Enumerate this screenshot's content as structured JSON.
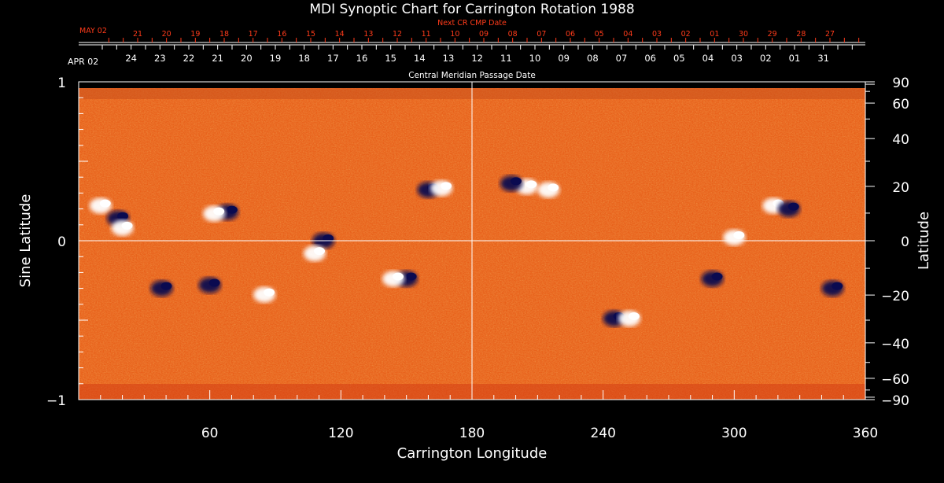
{
  "chart_data": {
    "type": "heatmap",
    "title": "MDI Synoptic Chart for Carrington Rotation 1988",
    "xlabel": "Carrington Longitude",
    "ylabel_left": "Sine Latitude",
    "ylabel_right": "Latitude",
    "xlim": [
      0,
      360
    ],
    "ylim": [
      -1,
      1
    ],
    "x_ticks": [
      60,
      120,
      180,
      240,
      300,
      360
    ],
    "y_ticks_left": [
      {
        "value": 1,
        "label": "1"
      },
      {
        "value": 0,
        "label": "0"
      },
      {
        "value": -1,
        "label": "−1"
      }
    ],
    "y_ticks_right_deg": [
      90,
      60,
      40,
      20,
      0,
      -20,
      -40,
      -60,
      -90
    ],
    "y_ticks_right_labels": [
      "90",
      "60",
      "40",
      "20",
      "0",
      "−20",
      "−40",
      "−60",
      "−90"
    ],
    "crosshair": {
      "longitude": 180,
      "sine_latitude": 0
    },
    "cmp_axis": {
      "title": "Central Meridian Passage Date",
      "start_label": "APR 02",
      "dates": [
        "24",
        "23",
        "22",
        "21",
        "20",
        "19",
        "18",
        "17",
        "16",
        "15",
        "14",
        "13",
        "12",
        "11",
        "10",
        "09",
        "08",
        "07",
        "06",
        "05",
        "04",
        "03",
        "02",
        "01",
        "31"
      ],
      "first_longitude": 24,
      "step_longitude": 13.2
    },
    "next_cmp_axis": {
      "title": "Next CR CMP Date",
      "start_label": "MAY 02",
      "dates": [
        "21",
        "20",
        "19",
        "18",
        "17",
        "16",
        "15",
        "14",
        "13",
        "12",
        "11",
        "10",
        "09",
        "08",
        "07",
        "06",
        "05",
        "04",
        "03",
        "02",
        "01",
        "30",
        "29",
        "28",
        "27"
      ],
      "first_longitude": 27,
      "step_longitude": 13.2
    },
    "colors": {
      "background_field": "#e8601a",
      "positive_polarity": "#ffffff",
      "negative_polarity": "#0a0a50",
      "text": "#ffffff",
      "next_cr_text": "#ff3b1a"
    },
    "active_regions": [
      {
        "lon": 10,
        "sinlat": 0.22,
        "polarity": "positive"
      },
      {
        "lon": 18,
        "sinlat": 0.14,
        "polarity": "negative"
      },
      {
        "lon": 20,
        "sinlat": 0.08,
        "polarity": "positive"
      },
      {
        "lon": 68,
        "sinlat": 0.18,
        "polarity": "negative"
      },
      {
        "lon": 62,
        "sinlat": 0.17,
        "polarity": "positive"
      },
      {
        "lon": 112,
        "sinlat": 0.0,
        "polarity": "negative"
      },
      {
        "lon": 108,
        "sinlat": -0.08,
        "polarity": "positive"
      },
      {
        "lon": 150,
        "sinlat": -0.24,
        "polarity": "negative"
      },
      {
        "lon": 144,
        "sinlat": -0.24,
        "polarity": "positive"
      },
      {
        "lon": 160,
        "sinlat": 0.32,
        "polarity": "negative"
      },
      {
        "lon": 166,
        "sinlat": 0.33,
        "polarity": "positive"
      },
      {
        "lon": 205,
        "sinlat": 0.34,
        "polarity": "positive"
      },
      {
        "lon": 215,
        "sinlat": 0.32,
        "polarity": "positive"
      },
      {
        "lon": 198,
        "sinlat": 0.36,
        "polarity": "negative"
      },
      {
        "lon": 245,
        "sinlat": -0.49,
        "polarity": "negative"
      },
      {
        "lon": 252,
        "sinlat": -0.49,
        "polarity": "positive"
      },
      {
        "lon": 300,
        "sinlat": 0.02,
        "polarity": "positive"
      },
      {
        "lon": 318,
        "sinlat": 0.22,
        "polarity": "positive"
      },
      {
        "lon": 325,
        "sinlat": 0.2,
        "polarity": "negative"
      },
      {
        "lon": 290,
        "sinlat": -0.24,
        "polarity": "negative"
      },
      {
        "lon": 38,
        "sinlat": -0.3,
        "polarity": "negative"
      },
      {
        "lon": 85,
        "sinlat": -0.34,
        "polarity": "positive"
      },
      {
        "lon": 60,
        "sinlat": -0.28,
        "polarity": "negative"
      },
      {
        "lon": 345,
        "sinlat": -0.3,
        "polarity": "negative"
      }
    ]
  }
}
